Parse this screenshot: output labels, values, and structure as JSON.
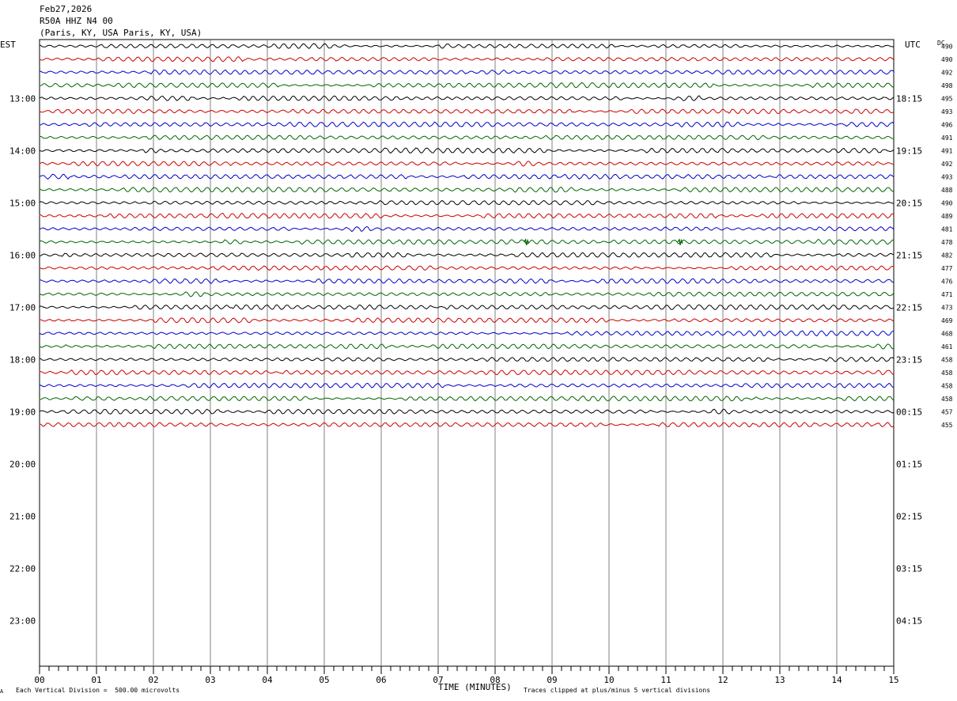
{
  "header": {
    "date": "Feb27,2026",
    "station": "R50A HHZ N4 00",
    "location": "(Paris, KY, USA Paris, KY, USA)"
  },
  "axis": {
    "left_label": "EST",
    "right_label": "UTC",
    "dc_label": "DC",
    "x_title": "TIME (MINUTES)",
    "x_ticks": [
      "00",
      "01",
      "02",
      "03",
      "04",
      "05",
      "06",
      "07",
      "08",
      "09",
      "10",
      "11",
      "12",
      "13",
      "14",
      "15"
    ]
  },
  "footer": {
    "scale_note": "Each Vertical Division =  500.00 microvolts",
    "clip_note": "Traces clipped at plus/minus 5 vertical divisions",
    "corner_mark": "A"
  },
  "colors": {
    "trace_cycle": [
      "#000000",
      "#cc0000",
      "#0000cc",
      "#006600"
    ],
    "grid": "#808080"
  },
  "chart_data": {
    "type": "line",
    "title": "R50A HHZ N4 00",
    "xlabel": "TIME (MINUTES)",
    "ylabel": "",
    "xlim": [
      0,
      15
    ],
    "rows_per_hour": 4,
    "left_hour_labels": [
      "13:00",
      "14:00",
      "15:00",
      "16:00",
      "17:00",
      "18:00",
      "19:00",
      "20:00",
      "21:00",
      "22:00",
      "23:00"
    ],
    "right_hour_labels": [
      "18:15",
      "19:15",
      "20:15",
      "21:15",
      "22:15",
      "23:15",
      "00:15",
      "01:15",
      "02:15",
      "03:15",
      "04:15"
    ],
    "first_labeled_row": 4,
    "total_rows": 48,
    "trace_dc_values": [
      490,
      490,
      492,
      498,
      495,
      493,
      496,
      491,
      491,
      492,
      493,
      488,
      490,
      489,
      481,
      478,
      482,
      477,
      476,
      471,
      473,
      469,
      468,
      461,
      458,
      458,
      458,
      458,
      457,
      455
    ],
    "event_markers": [
      {
        "trace": 15,
        "minute": 8.55
      },
      {
        "trace": 15,
        "minute": 11.25
      }
    ]
  }
}
